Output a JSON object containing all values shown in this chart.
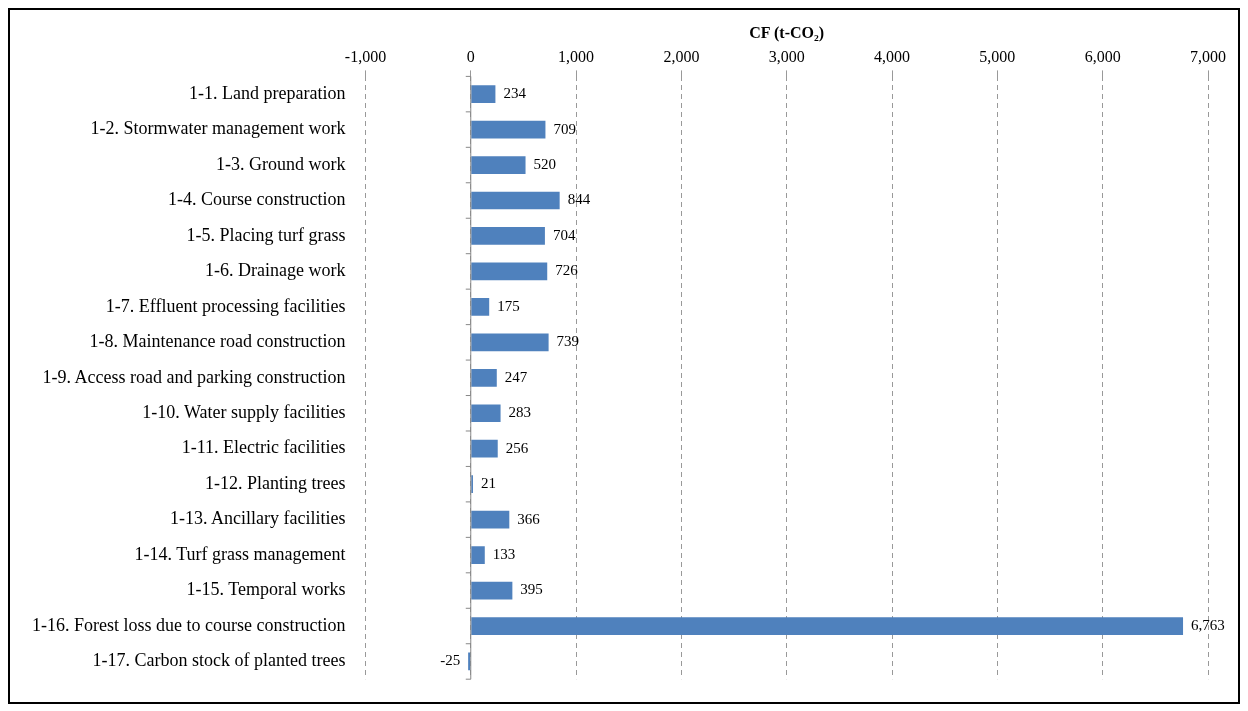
{
  "chart_data": {
    "type": "bar",
    "orientation": "horizontal",
    "xlabel": "CF (t-CO₂)",
    "categories": [
      "1-1. Land preparation",
      "1-2. Stormwater management work",
      "1-3. Ground work",
      "1-4. Course construction",
      "1-5. Placing turf grass",
      "1-6. Drainage work",
      "1-7. Effluent processing facilities",
      "1-8. Maintenance road construction",
      "1-9. Access road and parking construction",
      "1-10. Water supply facilities",
      "1-11. Electric facilities",
      "1-12. Planting trees",
      "1-13. Ancillary facilities",
      "1-14. Turf grass management",
      "1-15. Temporal works",
      "1-16. Forest loss due to course construction",
      "1-17. Carbon stock of planted trees"
    ],
    "values": [
      234,
      709,
      520,
      844,
      704,
      726,
      175,
      739,
      247,
      283,
      256,
      21,
      366,
      133,
      395,
      6763,
      -25
    ],
    "value_labels": [
      "234",
      "709",
      "520",
      "844",
      "704",
      "726",
      "175",
      "739",
      "247",
      "283",
      "256",
      "21",
      "366",
      "133",
      "395",
      "6,763",
      "-25"
    ],
    "color": "#4f81bd",
    "xlim": [
      -1000,
      7000
    ],
    "xticks": [
      {
        "value": -1000,
        "label": "-1,000"
      },
      0,
      {
        "value": 1000,
        "label": "1,000"
      },
      {
        "value": 2000,
        "label": "2,000"
      },
      {
        "value": 3000,
        "label": "3,000"
      },
      {
        "value": 4000,
        "label": "4,000"
      },
      {
        "value": 5000,
        "label": "5,000"
      },
      {
        "value": 6000,
        "label": "6,000"
      },
      {
        "value": 7000,
        "label": "7,000"
      }
    ],
    "grid": "x",
    "legend": false
  }
}
